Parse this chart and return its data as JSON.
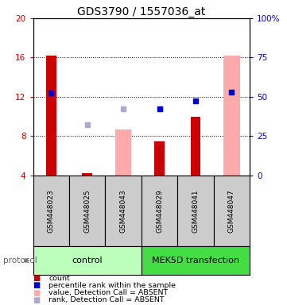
{
  "title": "GDS3790 / 1557036_at",
  "samples": [
    "GSM448023",
    "GSM448025",
    "GSM448043",
    "GSM448029",
    "GSM448041",
    "GSM448047"
  ],
  "ylim_left": [
    4,
    20
  ],
  "ylim_right": [
    0,
    100
  ],
  "yticks_left": [
    4,
    8,
    12,
    16,
    20
  ],
  "yticks_right": [
    0,
    25,
    50,
    75,
    100
  ],
  "ytick_right_labels": [
    "0",
    "25",
    "50",
    "75",
    "100%"
  ],
  "red_bars": [
    16.2,
    4.2,
    null,
    7.5,
    10.0,
    null
  ],
  "pink_bars": [
    null,
    null,
    8.7,
    null,
    null,
    16.2
  ],
  "blue_squares": [
    12.4,
    null,
    null,
    10.8,
    11.6,
    12.5
  ],
  "lavender_squares": [
    null,
    9.2,
    10.8,
    null,
    null,
    12.5
  ],
  "red_bar_color": "#cc0000",
  "pink_bar_color": "#ffaaaa",
  "blue_square_color": "#0000cc",
  "lavender_square_color": "#aaaacc",
  "control_color": "#bbffbb",
  "transfection_color": "#44dd44",
  "sample_box_color": "#cccccc",
  "title_fontsize": 10,
  "axis_color_left": "#cc0000",
  "axis_color_right": "#0000cc",
  "pink_bar_width": 0.45,
  "red_bar_width": 0.28,
  "dotted_lines": [
    8,
    12,
    16
  ],
  "legend_items": [
    [
      "#cc0000",
      "count"
    ],
    [
      "#0000cc",
      "percentile rank within the sample"
    ],
    [
      "#ffaaaa",
      "value, Detection Call = ABSENT"
    ],
    [
      "#aaaacc",
      "rank, Detection Call = ABSENT"
    ]
  ]
}
